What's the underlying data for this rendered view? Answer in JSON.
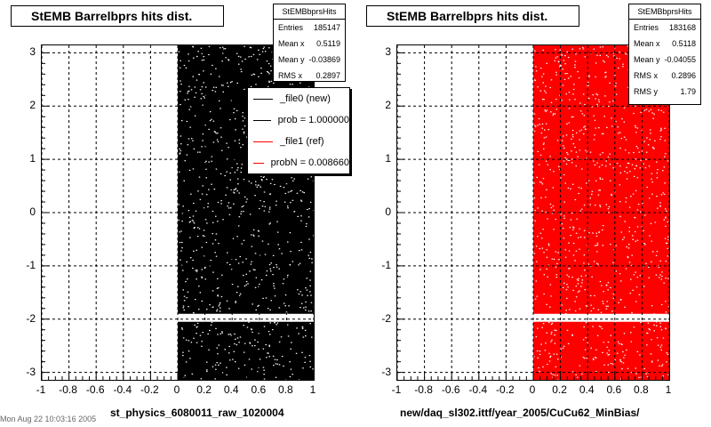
{
  "chart_data": [
    {
      "type": "scatter",
      "title": "StEMB Barrelbprs hits dist.",
      "xlabel": "st_physics_6080011_raw_1020004",
      "ylabel": "",
      "xlim": [
        -1,
        1
      ],
      "ylim": [
        -3.14,
        3.14
      ],
      "x_ticks": [
        "-1",
        "-0.8",
        "-0.6",
        "-0.4",
        "-0.2",
        "0",
        "0.2",
        "0.4",
        "0.6",
        "0.8",
        "1"
      ],
      "y_ticks": [
        "-3",
        "-2",
        "-1",
        "0",
        "1",
        "2",
        "3"
      ],
      "grid": true,
      "marker_color": "#000000",
      "filled_region": {
        "x": [
          0,
          1
        ],
        "y": [
          -3.14,
          3.14
        ]
      },
      "gap_band_y": [
        -2.05,
        -1.9
      ],
      "stats_box": {
        "title": "StEMBbprsHits",
        "rows": [
          {
            "label": "Entries",
            "value": "185147"
          },
          {
            "label": "Mean x",
            "value": "0.5119"
          },
          {
            "label": "Mean y",
            "value": "-0.03869"
          },
          {
            "label": "RMS x",
            "value": "0.2897"
          }
        ]
      },
      "legend": {
        "placement": "top-right",
        "entries": [
          {
            "label": "_file0 (new)",
            "color": "#000000"
          },
          {
            "label": "prob = 1.000000",
            "color": "#000000"
          },
          {
            "label": "_file1 (ref)",
            "color": "#ff0000"
          },
          {
            "label": "probN = 0.008660",
            "color": "#ff0000"
          }
        ]
      }
    },
    {
      "type": "scatter",
      "title": "StEMB Barrelbprs hits dist.",
      "xlabel": "new/daq_sl302.ittf/year_2005/CuCu62_MinBias/",
      "ylabel": "",
      "xlim": [
        -1,
        1
      ],
      "ylim": [
        -3.14,
        3.14
      ],
      "x_ticks": [
        "-1",
        "-0.8",
        "-0.6",
        "-0.4",
        "-0.2",
        "0",
        "0.2",
        "0.4",
        "0.6",
        "0.8",
        "1"
      ],
      "y_ticks": [
        "-3",
        "-2",
        "-1",
        "0",
        "1",
        "2",
        "3"
      ],
      "grid": true,
      "marker_color": "#ff0000",
      "filled_region": {
        "x": [
          0,
          1
        ],
        "y": [
          -3.14,
          3.14
        ]
      },
      "gap_band_y": [
        -2.05,
        -1.9
      ],
      "stats_box": {
        "title": "StEMBbprsHits",
        "rows": [
          {
            "label": "Entries",
            "value": "183168"
          },
          {
            "label": "Mean x",
            "value": "0.5118"
          },
          {
            "label": "Mean y",
            "value": "-0.04055"
          },
          {
            "label": "RMS x",
            "value": "0.2896"
          },
          {
            "label": "RMS y",
            "value": "1.79"
          }
        ]
      }
    }
  ],
  "footer": "Mon Aug 22 10:03:16 2005"
}
